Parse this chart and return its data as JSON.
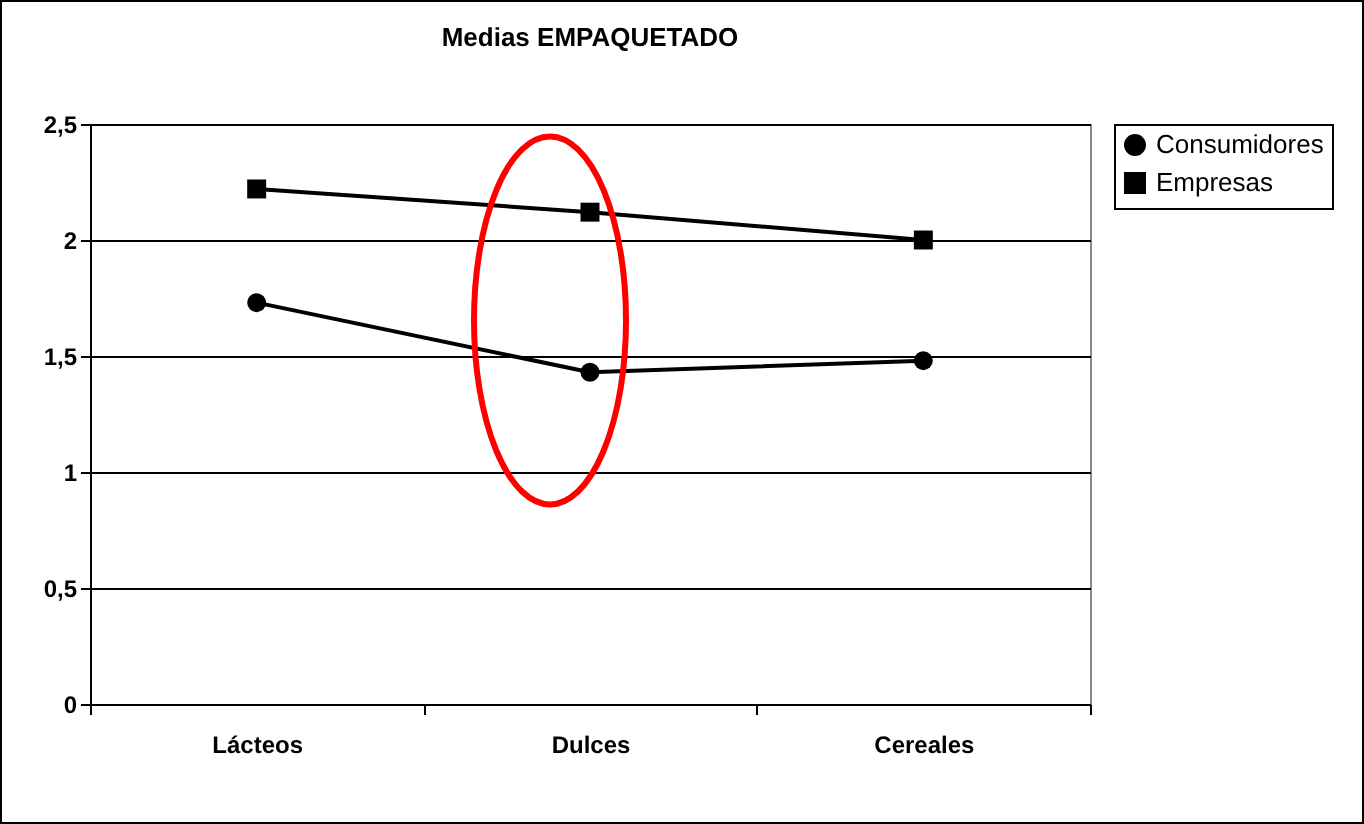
{
  "chart_data": {
    "type": "line",
    "title": "Medias EMPAQUETADO",
    "categories": [
      "Lácteos",
      "Dulces",
      "Cereales"
    ],
    "series": [
      {
        "name": "Consumidores",
        "color": "#000000",
        "marker": "circle",
        "values": [
          1.73,
          1.43,
          1.48
        ]
      },
      {
        "name": "Empresas",
        "color": "#000000",
        "marker": "square",
        "values": [
          2.22,
          2.12,
          2.0
        ]
      }
    ],
    "ylim": [
      0,
      2.5
    ],
    "yticks": [
      0,
      {
        "value": 0.5,
        "label": "0,5"
      },
      1,
      {
        "value": 1.5,
        "label": "1,5"
      },
      2,
      {
        "value": 2.5,
        "label": "2,5"
      }
    ],
    "grid": "y",
    "legend": "right"
  }
}
